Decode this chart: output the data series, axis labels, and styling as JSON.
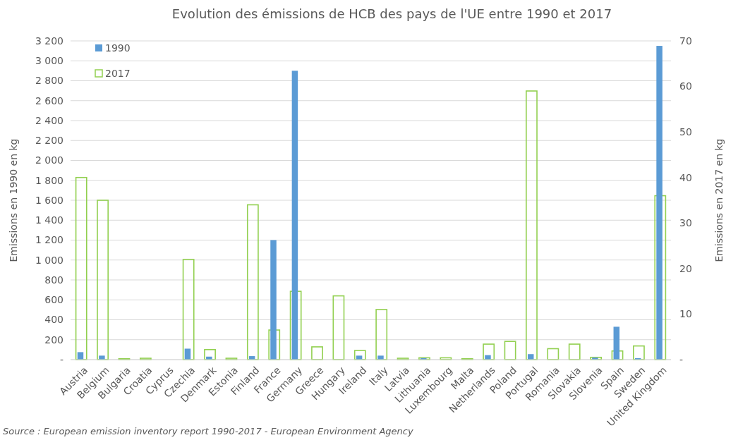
{
  "chart_data": {
    "type": "bar",
    "title": "Evolution des émissions de HCB des pays de l'UE entre 1990 et 2017",
    "categories": [
      "Austria",
      "Belgium",
      "Bulgaria",
      "Croatia",
      "Cyprus",
      "Czechia",
      "Denmark",
      "Estonia",
      "Finland",
      "France",
      "Germany",
      "Greece",
      "Hungary",
      "Ireland",
      "Italy",
      "Latvia",
      "Lithuania",
      "Luxembourg",
      "Malta",
      "Netherlands",
      "Poland",
      "Portugal",
      "Romania",
      "Slovakia",
      "Slovenia",
      "Spain",
      "Sweden",
      "United Kingdom"
    ],
    "series": [
      {
        "name": "2017",
        "color": "#92d050",
        "axis": "y2",
        "values": [
          40,
          35,
          0.2,
          0.3,
          0,
          22,
          2.2,
          0.3,
          34,
          6.5,
          15,
          2.8,
          14,
          2,
          11,
          0.3,
          0.4,
          0.4,
          0.2,
          3.4,
          4,
          59,
          2.4,
          3.4,
          0.5,
          1.9,
          3,
          36
        ]
      },
      {
        "name": "1990",
        "color": "#5b9bd5",
        "values": [
          75,
          40,
          0,
          0,
          0,
          110,
          30,
          0,
          35,
          1200,
          2900,
          0,
          0,
          40,
          40,
          0,
          15,
          0,
          0,
          45,
          0,
          55,
          0,
          0,
          20,
          330,
          15,
          3150
        ]
      }
    ],
    "ylabel": "Emissions en 1990 en kg",
    "y2label": "Emissions en 2017 en kg",
    "ylim": [
      0,
      3200
    ],
    "yticks": [
      {
        "value": 0,
        "label": "-"
      },
      200,
      400,
      600,
      800,
      {
        "value": 1000,
        "label": "1 000"
      },
      {
        "value": 1200,
        "label": "1 200"
      },
      {
        "value": 1400,
        "label": "1 400"
      },
      {
        "value": 1600,
        "label": "1 600"
      },
      {
        "value": 1800,
        "label": "1 800"
      },
      {
        "value": 2000,
        "label": "2 000"
      },
      {
        "value": 2200,
        "label": "2 200"
      },
      {
        "value": 2400,
        "label": "2 400"
      },
      {
        "value": 2600,
        "label": "2 600"
      },
      {
        "value": 2800,
        "label": "2 800"
      },
      {
        "value": 3000,
        "label": "3 000"
      },
      {
        "value": 3200,
        "label": "3 200"
      }
    ],
    "y2lim": [
      0,
      70
    ],
    "y2ticks": [
      {
        "value": 0,
        "label": "-"
      },
      10,
      20,
      30,
      40,
      50,
      60,
      70
    ],
    "grid": "y",
    "legend": "top left",
    "annotations": [
      "Source : European emission inventory report 1990-2017 - European Environment Agency"
    ]
  }
}
